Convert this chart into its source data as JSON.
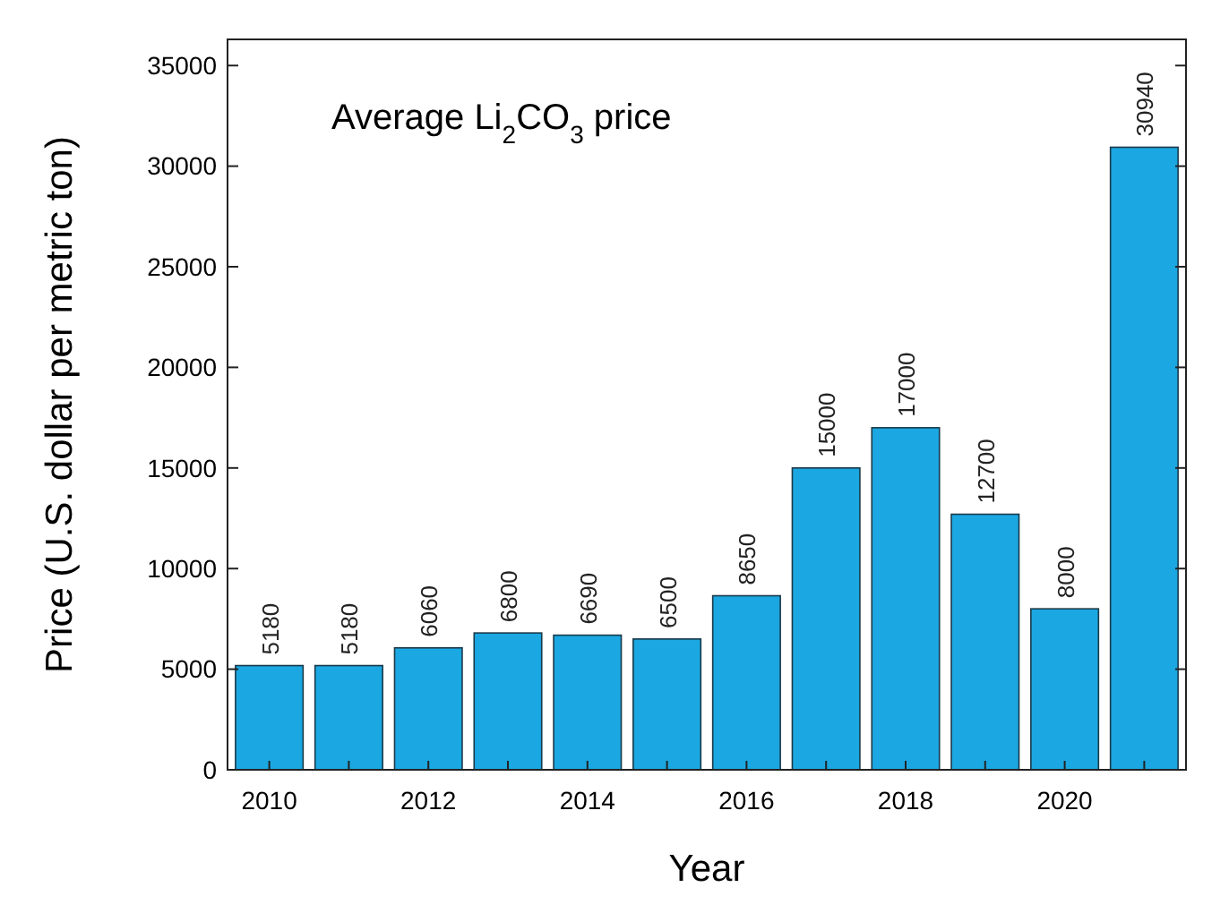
{
  "chart_data": {
    "type": "bar",
    "title": "Average Li$_{2}$CO$_{3}$ price",
    "xlabel": "Year",
    "ylabel": "Price (U.S. dollar per metric ton)",
    "categories": [
      "2010",
      null,
      "2012",
      null,
      "2014",
      null,
      "2016",
      null,
      "2018",
      null,
      "2020",
      null
    ],
    "values": [
      5180,
      5180,
      6060,
      6800,
      6690,
      6500,
      8650,
      15000,
      17000,
      12700,
      8000,
      30940
    ],
    "color": "#1ba7e1",
    "ylim": [
      0,
      36300
    ],
    "yticks": [
      0,
      5000,
      10000,
      15000,
      20000,
      25000,
      30000,
      35000
    ],
    "data_labels": true
  }
}
